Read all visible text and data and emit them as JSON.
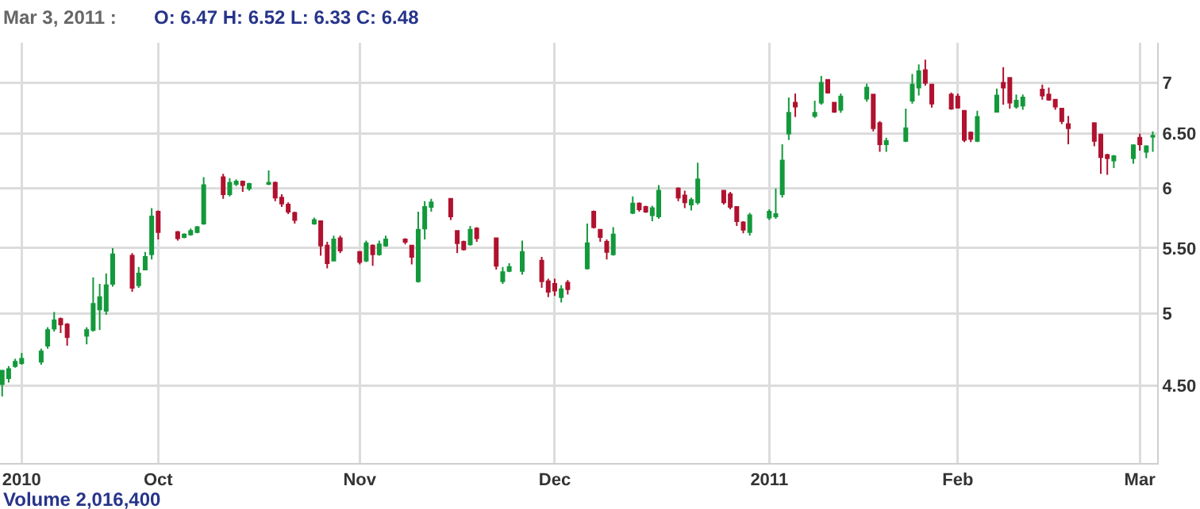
{
  "chart_data": {
    "type": "candlestick",
    "log": "y",
    "grid": true,
    "annotations": [
      "Mar 3, 2011 :",
      "O: 6.47 H: 6.52 L: 6.33 C: 6.48",
      "Volume 2,016,400"
    ],
    "colors": [
      "#13993b",
      "#13993b",
      "#13993b",
      "#13993b",
      "#13993b",
      "#13993b",
      "#13993b",
      "#b0122f",
      "#b0122f",
      "#13993b",
      "#13993b",
      "#13993b",
      "#13993b",
      "#13993b",
      "#b0122f",
      "#13993b",
      "#13993b",
      "#13993b",
      "#b0122f",
      "#b0122f",
      "#13993b",
      "#13993b",
      "#13993b",
      "#13993b",
      "#b0122f",
      "#13993b",
      "#13993b",
      "#b0122f",
      "#13993b",
      "#13993b",
      "#b0122f",
      "#b0122f",
      "#b0122f",
      "#b0122f",
      "#13993b",
      "#b0122f",
      "#b0122f",
      "#13993b",
      "#b0122f",
      "#b0122f",
      "#13993b",
      "#b0122f",
      "#13993b",
      "#13993b",
      "#b0122f",
      "#b0122f",
      "#13993b",
      "#13993b",
      "#13993b",
      "#b0122f",
      "#b0122f",
      "#b0122f",
      "#13993b",
      "#b0122f",
      "#b0122f",
      "#13993b",
      "#13993b",
      "#13993b",
      "#b0122f",
      "#b0122f",
      "#b0122f",
      "#13993b",
      "#b0122f",
      "#13993b",
      "#b0122f",
      "#b0122f",
      "#b0122f",
      "#13993b",
      "#13993b",
      "#b0122f",
      "#b0122f",
      "#13993b",
      "#13993b",
      "#b0122f",
      "#b0122f",
      "#13993b",
      "#13993b",
      "#b0122f",
      "#b0122f",
      "#b0122f",
      "#b0122f",
      "#13993b",
      "#13993b",
      "#13993b",
      "#13993b",
      "#13993b",
      "#b0122f",
      "#13993b",
      "#13993b",
      "#b0122f",
      "#b0122f",
      "#13993b",
      "#13993b",
      "#b0122f",
      "#b0122f",
      "#13993b",
      "#13993b",
      "#13993b",
      "#13993b",
      "#b0122f",
      "#b0122f",
      "#b0122f",
      "#b0122f",
      "#b0122f",
      "#b0122f",
      "#13993b",
      "#13993b",
      "#b0122f",
      "#b0122f",
      "#13993b",
      "#13993b",
      "#b0122f",
      "#b0122f",
      "#b0122f",
      "#b0122f",
      "#b0122f",
      "#b0122f",
      "#b0122f",
      "#b0122f",
      "#13993b",
      "#13993b",
      "#b0122f",
      "#13993b",
      "#13993b"
    ],
    "xlim": [
      "2010-09-06T16:00",
      "2011-03-03T16:00"
    ],
    "ylim": [
      4.02,
      7.42
    ],
    "yticks": [
      {
        "value": 4.5,
        "label": "4.50"
      },
      5,
      {
        "value": 5.5,
        "label": "5.50"
      },
      6,
      {
        "value": 6.5,
        "label": "6.50"
      },
      7
    ],
    "xticks": [
      {
        "value": "2010-09-10",
        "label": "2010"
      },
      {
        "value": "2010-10-01",
        "label": "Oct"
      },
      {
        "value": "2010-11-01",
        "label": "Nov"
      },
      {
        "value": "2010-12-01",
        "label": "Dec"
      },
      {
        "value": "2011-01-03",
        "label": "2011"
      },
      {
        "value": "2011-02-01",
        "label": "Feb"
      },
      {
        "value": "2011-03-01",
        "label": "Mar"
      }
    ],
    "x": [
      "2010-09-07",
      "2010-09-08",
      "2010-09-09",
      "2010-09-10",
      "2010-09-13",
      "2010-09-14",
      "2010-09-15",
      "2010-09-16",
      "2010-09-17",
      "2010-09-20",
      "2010-09-21",
      "2010-09-22",
      "2010-09-23",
      "2010-09-24",
      "2010-09-27",
      "2010-09-28",
      "2010-09-29",
      "2010-09-30",
      "2010-10-01",
      "2010-10-04",
      "2010-10-05",
      "2010-10-06",
      "2010-10-07",
      "2010-10-08",
      "2010-10-11",
      "2010-10-12",
      "2010-10-13",
      "2010-10-14",
      "2010-10-15",
      "2010-10-18",
      "2010-10-19",
      "2010-10-20",
      "2010-10-21",
      "2010-10-22",
      "2010-10-25",
      "2010-10-26",
      "2010-10-27",
      "2010-10-28",
      "2010-10-29",
      "2010-11-01",
      "2010-11-02",
      "2010-11-03",
      "2010-11-04",
      "2010-11-05",
      "2010-11-08",
      "2010-11-09",
      "2010-11-10",
      "2010-11-11",
      "2010-11-12",
      "2010-11-15",
      "2010-11-16",
      "2010-11-17",
      "2010-11-18",
      "2010-11-19",
      "2010-11-22",
      "2010-11-23",
      "2010-11-24",
      "2010-11-26",
      "2010-11-29",
      "2010-11-30",
      "2010-12-01",
      "2010-12-02",
      "2010-12-03",
      "2010-12-06",
      "2010-12-07",
      "2010-12-08",
      "2010-12-09",
      "2010-12-10",
      "2010-12-13",
      "2010-12-14",
      "2010-12-15",
      "2010-12-16",
      "2010-12-17",
      "2010-12-20",
      "2010-12-21",
      "2010-12-22",
      "2010-12-23",
      "2010-12-27",
      "2010-12-28",
      "2010-12-29",
      "2010-12-30",
      "2010-12-31",
      "2011-01-03",
      "2011-01-04",
      "2011-01-05",
      "2011-01-06",
      "2011-01-07",
      "2011-01-10",
      "2011-01-11",
      "2011-01-12",
      "2011-01-13",
      "2011-01-14",
      "2011-01-18",
      "2011-01-19",
      "2011-01-20",
      "2011-01-21",
      "2011-01-24",
      "2011-01-25",
      "2011-01-26",
      "2011-01-27",
      "2011-01-28",
      "2011-01-31",
      "2011-02-01",
      "2011-02-02",
      "2011-02-03",
      "2011-02-04",
      "2011-02-07",
      "2011-02-08",
      "2011-02-09",
      "2011-02-10",
      "2011-02-11",
      "2011-02-14",
      "2011-02-15",
      "2011-02-16",
      "2011-02-17",
      "2011-02-18",
      "2011-02-22",
      "2011-02-23",
      "2011-02-24",
      "2011-02-25",
      "2011-02-28",
      "2011-03-01",
      "2011-03-02",
      "2011-03-03"
    ],
    "ohlc": [
      [
        4.51,
        4.6,
        4.43,
        4.6
      ],
      [
        4.55,
        4.63,
        4.52,
        4.61
      ],
      [
        4.63,
        4.68,
        4.62,
        4.66
      ],
      [
        4.65,
        4.72,
        4.64,
        4.68
      ],
      [
        4.66,
        4.75,
        4.64,
        4.73
      ],
      [
        4.77,
        4.9,
        4.75,
        4.88
      ],
      [
        4.89,
        5.01,
        4.87,
        4.95
      ],
      [
        4.96,
        4.97,
        4.86,
        4.92
      ],
      [
        4.92,
        4.93,
        4.77,
        4.83
      ],
      [
        4.84,
        4.9,
        4.78,
        4.88
      ],
      [
        4.88,
        5.27,
        4.87,
        5.07
      ],
      [
        5.03,
        5.22,
        4.88,
        5.12
      ],
      [
        5.02,
        5.3,
        4.99,
        5.21
      ],
      [
        5.22,
        5.5,
        5.2,
        5.45
      ],
      [
        5.44,
        5.46,
        5.16,
        5.19
      ],
      [
        5.21,
        5.35,
        5.19,
        5.3
      ],
      [
        5.33,
        5.47,
        5.33,
        5.43
      ],
      [
        5.45,
        5.83,
        5.41,
        5.76
      ],
      [
        5.8,
        5.81,
        5.57,
        5.63
      ],
      [
        5.63,
        5.64,
        5.56,
        5.58
      ],
      [
        5.59,
        5.62,
        5.58,
        5.61
      ],
      [
        5.61,
        5.66,
        5.6,
        5.64
      ],
      [
        5.63,
        5.68,
        5.62,
        5.67
      ],
      [
        5.7,
        6.1,
        5.69,
        6.03
      ],
      [
        6.1,
        6.13,
        5.91,
        5.95
      ],
      [
        5.95,
        6.09,
        5.93,
        6.05
      ],
      [
        6.04,
        6.08,
        6.02,
        6.06
      ],
      [
        6.06,
        6.07,
        5.97,
        6.03
      ],
      [
        6.0,
        6.05,
        5.98,
        6.04
      ],
      [
        6.04,
        6.16,
        6.03,
        6.05
      ],
      [
        6.05,
        6.06,
        5.89,
        5.92
      ],
      [
        5.92,
        5.95,
        5.84,
        5.87
      ],
      [
        5.86,
        5.88,
        5.78,
        5.8
      ],
      [
        5.79,
        5.8,
        5.7,
        5.73
      ],
      [
        5.7,
        5.75,
        5.69,
        5.73
      ],
      [
        5.72,
        5.72,
        5.44,
        5.52
      ],
      [
        5.52,
        5.55,
        5.34,
        5.38
      ],
      [
        5.4,
        5.6,
        5.4,
        5.57
      ],
      [
        5.58,
        5.6,
        5.46,
        5.48
      ],
      [
        5.47,
        5.47,
        5.37,
        5.39
      ],
      [
        5.4,
        5.56,
        5.39,
        5.54
      ],
      [
        5.52,
        5.53,
        5.36,
        5.45
      ],
      [
        5.45,
        5.56,
        5.44,
        5.53
      ],
      [
        5.52,
        5.6,
        5.51,
        5.57
      ],
      [
        5.57,
        5.58,
        5.53,
        5.55
      ],
      [
        5.52,
        5.52,
        5.37,
        5.43
      ],
      [
        5.24,
        5.8,
        5.23,
        5.65
      ],
      [
        5.66,
        5.89,
        5.57,
        5.84
      ],
      [
        5.84,
        5.91,
        5.8,
        5.88
      ],
      [
        5.91,
        5.91,
        5.73,
        5.76
      ],
      [
        5.64,
        5.64,
        5.46,
        5.54
      ],
      [
        5.55,
        5.56,
        5.48,
        5.49
      ],
      [
        5.53,
        5.68,
        5.52,
        5.65
      ],
      [
        5.66,
        5.67,
        5.55,
        5.58
      ],
      [
        5.58,
        5.58,
        5.33,
        5.36
      ],
      [
        5.24,
        5.35,
        5.22,
        5.31
      ],
      [
        5.32,
        5.38,
        5.31,
        5.35
      ],
      [
        5.32,
        5.56,
        5.29,
        5.47
      ],
      [
        5.4,
        5.43,
        5.19,
        5.24
      ],
      [
        5.24,
        5.26,
        5.12,
        5.16
      ],
      [
        5.22,
        5.26,
        5.13,
        5.17
      ],
      [
        5.12,
        5.21,
        5.08,
        5.18
      ],
      [
        5.23,
        5.25,
        5.14,
        5.18
      ],
      [
        5.34,
        5.7,
        5.33,
        5.54
      ],
      [
        5.8,
        5.81,
        5.66,
        5.67
      ],
      [
        5.65,
        5.65,
        5.55,
        5.59
      ],
      [
        5.55,
        5.57,
        5.41,
        5.47
      ],
      [
        5.45,
        5.67,
        5.44,
        5.61
      ],
      [
        5.79,
        5.93,
        5.78,
        5.87
      ],
      [
        5.87,
        5.88,
        5.8,
        5.82
      ],
      [
        5.84,
        5.85,
        5.79,
        5.8
      ],
      [
        5.77,
        5.85,
        5.72,
        5.83
      ],
      [
        5.76,
        6.03,
        5.74,
        5.98
      ],
      [
        6.0,
        6.01,
        5.89,
        5.92
      ],
      [
        5.94,
        5.98,
        5.83,
        5.88
      ],
      [
        5.86,
        5.92,
        5.81,
        5.9
      ],
      [
        5.88,
        6.23,
        5.86,
        6.08
      ],
      [
        5.98,
        5.98,
        5.86,
        5.88
      ],
      [
        5.95,
        5.97,
        5.82,
        5.84
      ],
      [
        5.84,
        5.84,
        5.68,
        5.72
      ],
      [
        5.71,
        5.72,
        5.62,
        5.65
      ],
      [
        5.63,
        5.79,
        5.6,
        5.77
      ],
      [
        5.75,
        5.82,
        5.73,
        5.8
      ],
      [
        5.76,
        6.0,
        5.74,
        5.78
      ],
      [
        5.95,
        6.4,
        5.92,
        6.25
      ],
      [
        6.5,
        6.85,
        6.44,
        6.7
      ],
      [
        6.8,
        6.89,
        6.66,
        6.76
      ],
      [
        6.67,
        6.82,
        6.65,
        6.7
      ],
      [
        6.8,
        7.07,
        6.78,
        7.0
      ],
      [
        7.03,
        7.03,
        6.89,
        6.9
      ],
      [
        6.8,
        6.8,
        6.7,
        6.71
      ],
      [
        6.73,
        6.89,
        6.7,
        6.86
      ],
      [
        6.84,
        6.99,
        6.81,
        6.95
      ],
      [
        6.88,
        6.88,
        6.52,
        6.55
      ],
      [
        6.6,
        6.62,
        6.33,
        6.4
      ],
      [
        6.4,
        6.46,
        6.33,
        6.43
      ],
      [
        6.43,
        6.74,
        6.42,
        6.55
      ],
      [
        6.82,
        7.09,
        6.79,
        6.98
      ],
      [
        6.95,
        7.19,
        6.87,
        7.12
      ],
      [
        7.13,
        7.24,
        6.97,
        7.0
      ],
      [
        6.98,
        6.99,
        6.75,
        6.79
      ],
      [
        6.88,
        6.9,
        6.73,
        6.74
      ],
      [
        6.86,
        6.89,
        6.74,
        6.75
      ],
      [
        6.72,
        6.72,
        6.42,
        6.44
      ],
      [
        6.51,
        6.52,
        6.42,
        6.45
      ],
      [
        6.43,
        6.72,
        6.42,
        6.66
      ],
      [
        6.71,
        6.94,
        6.71,
        6.87
      ],
      [
        7.0,
        7.16,
        6.78,
        6.95
      ],
      [
        7.05,
        7.05,
        6.74,
        6.8
      ],
      [
        6.76,
        6.88,
        6.74,
        6.82
      ],
      [
        6.77,
        6.88,
        6.73,
        6.85
      ],
      [
        6.93,
        6.98,
        6.83,
        6.87
      ],
      [
        6.88,
        6.95,
        6.82,
        6.83
      ],
      [
        6.83,
        6.83,
        6.73,
        6.76
      ],
      [
        6.74,
        6.74,
        6.59,
        6.62
      ],
      [
        6.59,
        6.67,
        6.4,
        6.55
      ],
      [
        6.6,
        6.6,
        6.38,
        6.43
      ],
      [
        6.49,
        6.5,
        6.13,
        6.28
      ],
      [
        6.3,
        6.31,
        6.12,
        6.27
      ],
      [
        6.25,
        6.3,
        6.18,
        6.29
      ],
      [
        6.27,
        6.4,
        6.22,
        6.39
      ],
      [
        6.46,
        6.5,
        6.34,
        6.4
      ],
      [
        6.33,
        6.39,
        6.27,
        6.38
      ],
      [
        6.47,
        6.52,
        6.33,
        6.48
      ]
    ]
  }
}
